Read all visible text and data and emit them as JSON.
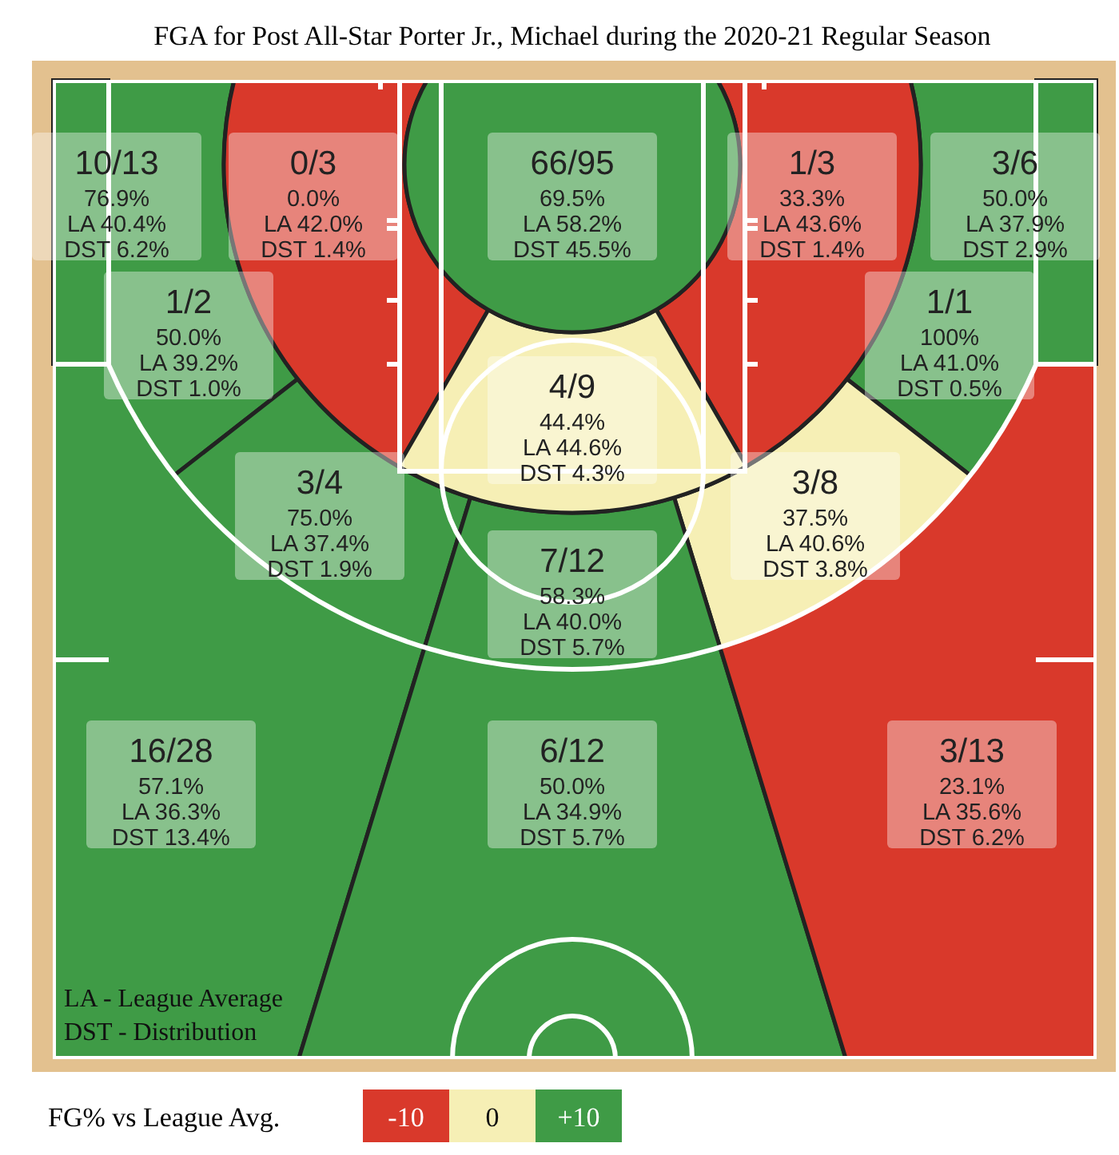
{
  "chart_data": {
    "type": "other",
    "title": "FGA for Post All-Star Porter Jr., Michael during the 2020-21 Regular Season",
    "categories": [
      "10/13",
      "0/3",
      "66/95",
      "1/3",
      "3/6",
      "1/2",
      "1/1",
      "4/9",
      "3/4",
      "3/8",
      "7/12",
      "16/28",
      "6/12",
      "3/13"
    ],
    "series": [
      {
        "color": "#ffffff",
        "values": [
          76.9,
          0.0,
          69.5,
          33.3,
          50.0,
          50.0,
          100,
          44.4,
          75.0,
          37.5,
          58.3,
          57.1,
          50.0,
          23.1
        ],
        "value_labels": [
          "76.9%",
          "0.0%",
          "69.5%",
          "33.3%",
          "50.0%",
          "50.0%",
          "100%",
          "44.4%",
          "75.0%",
          "37.5%",
          "58.3%",
          "57.1%",
          "50.0%",
          "23.1%"
        ]
      },
      {
        "color": "#222222",
        "values": [
          40.4,
          42.0,
          58.2,
          43.6,
          37.9,
          39.2,
          41.0,
          44.6,
          37.4,
          40.6,
          40.0,
          36.3,
          34.9,
          35.6
        ],
        "value_labels": [
          "LA 40.4%",
          "LA 42.0%",
          "LA 58.2%",
          "LA 43.6%",
          "LA 37.9%",
          "LA 39.2%",
          "LA 41.0%",
          "LA 44.6%",
          "LA 37.4%",
          "LA 40.6%",
          "LA 40.0%",
          "LA 36.3%",
          "LA 34.9%",
          "LA 35.6%"
        ]
      },
      {
        "color": "#222222",
        "values": [
          6.2,
          1.4,
          45.5,
          1.4,
          2.9,
          1.0,
          0.5,
          4.3,
          1.9,
          3.8,
          5.7,
          13.4,
          5.7,
          6.2
        ],
        "value_labels": [
          "DST 6.2%",
          "DST 1.4%",
          "DST 45.5%",
          "DST 1.4%",
          "DST 2.9%",
          "DST 1.0%",
          "DST 0.5%",
          "DST 4.3%",
          "DST 1.9%",
          "DST 3.8%",
          "DST 5.7%",
          "DST 13.4%",
          "DST 5.7%",
          "DST 6.2%"
        ]
      }
    ],
    "legend_title": "FG% vs League Avg.",
    "annotations": [
      "LA - League Average",
      "DST - Distribution",
      "-10",
      "0",
      "+10"
    ]
  }
}
